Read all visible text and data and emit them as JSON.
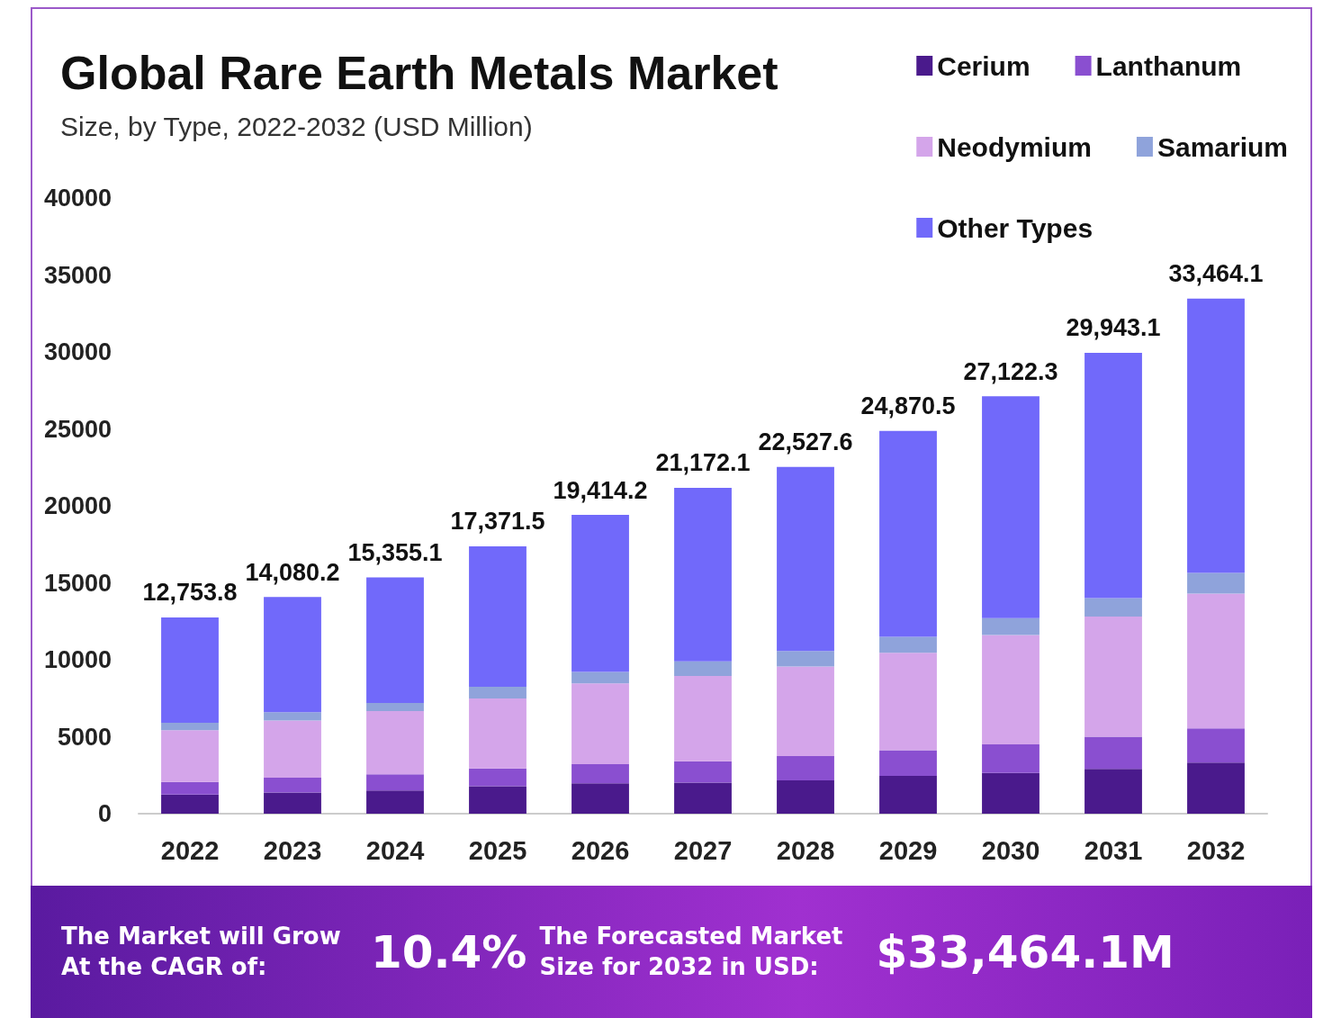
{
  "chart_data": {
    "type": "bar",
    "title": "Global Rare Earth Metals Market",
    "subtitle": "Size, by Type, 2022-2032 (USD Million)",
    "categories": [
      "2022",
      "2023",
      "2024",
      "2025",
      "2026",
      "2027",
      "2028",
      "2029",
      "2030",
      "2031",
      "2032"
    ],
    "stacked": true,
    "ylim": [
      0,
      40000
    ],
    "yticks": [
      0,
      5000,
      10000,
      15000,
      20000,
      25000,
      30000,
      35000,
      40000
    ],
    "grid": false,
    "legend": "top right",
    "series": [
      {
        "name": "Cerium",
        "color": "#4a1a8c",
        "values": [
          1240,
          1380,
          1510,
          1790,
          1980,
          2020,
          2160,
          2450,
          2650,
          2910,
          3320
        ]
      },
      {
        "name": "Lanthanum",
        "color": "#8a4fd0",
        "values": [
          820,
          960,
          1050,
          1150,
          1240,
          1380,
          1590,
          1680,
          1850,
          2090,
          2220
        ]
      },
      {
        "name": "Neodymium",
        "color": "#d4a5ea",
        "values": [
          3360,
          3710,
          4100,
          4540,
          5250,
          5550,
          5810,
          6320,
          7110,
          7800,
          8760
        ]
      },
      {
        "name": "Samarium",
        "color": "#8fa3db",
        "values": [
          490,
          550,
          540,
          770,
          740,
          950,
          1010,
          1040,
          1090,
          1210,
          1350
        ]
      },
      {
        "name": "Other Types",
        "color": "#7169fa",
        "values": [
          6843.8,
          7480.2,
          8155.1,
          9121.5,
          10204.2,
          11272.1,
          11957.6,
          13380.5,
          14422.3,
          15933.1,
          17814.1
        ]
      }
    ],
    "totals": [
      "12,753.8",
      "14,080.2",
      "15,355.1",
      "17,371.5",
      "19,414.2",
      "21,172.1",
      "22,527.6",
      "24,870.5",
      "27,122.3",
      "29,943.1",
      "33,464.1"
    ],
    "annotations": [
      "The Market will Grow At the CAGR of:",
      "10.4%",
      "The Forecasted Market Size for 2032 in USD:",
      "$33,464.1M"
    ]
  }
}
